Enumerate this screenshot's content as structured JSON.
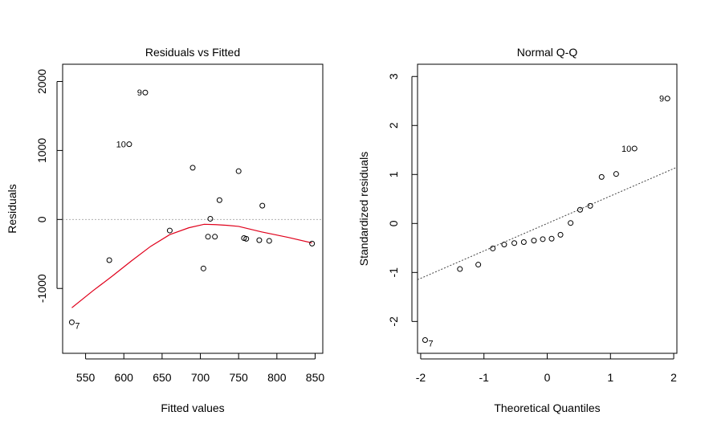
{
  "chart_data": [
    {
      "type": "scatter",
      "title": "Residuals vs Fitted",
      "xlabel": "Fitted values",
      "ylabel": "Residuals",
      "xlim": [
        520,
        860
      ],
      "ylim": [
        -1940,
        2250
      ],
      "xticks": [
        550,
        600,
        650,
        700,
        750,
        800,
        850
      ],
      "yticks": [
        -1000,
        0,
        1000,
        2000
      ],
      "xtick_labels": [
        "550",
        "600",
        "650",
        "700",
        "750",
        "800",
        "850"
      ],
      "ytick_labels": [
        "-1000",
        "0",
        "1000",
        "2000"
      ],
      "reference_line": 0,
      "points": [
        {
          "x": 532,
          "y": -1490,
          "label": "7"
        },
        {
          "x": 581,
          "y": -590,
          "label": ""
        },
        {
          "x": 607,
          "y": 1090,
          "label": "10"
        },
        {
          "x": 628,
          "y": 1840,
          "label": "9"
        },
        {
          "x": 660,
          "y": -160,
          "label": ""
        },
        {
          "x": 690,
          "y": 750,
          "label": ""
        },
        {
          "x": 704,
          "y": -710,
          "label": ""
        },
        {
          "x": 710,
          "y": -250,
          "label": ""
        },
        {
          "x": 713,
          "y": 10,
          "label": ""
        },
        {
          "x": 719,
          "y": -250,
          "label": ""
        },
        {
          "x": 725,
          "y": 280,
          "label": ""
        },
        {
          "x": 750,
          "y": 700,
          "label": ""
        },
        {
          "x": 757,
          "y": -270,
          "label": ""
        },
        {
          "x": 760,
          "y": -280,
          "label": ""
        },
        {
          "x": 777,
          "y": -300,
          "label": ""
        },
        {
          "x": 781,
          "y": 200,
          "label": ""
        },
        {
          "x": 790,
          "y": -310,
          "label": ""
        },
        {
          "x": 846,
          "y": -350,
          "label": ""
        }
      ],
      "smooth_line": {
        "color": "#e0001b",
        "x": [
          532,
          560,
          585,
          610,
          635,
          660,
          685,
          705,
          720,
          735,
          750,
          780,
          815,
          846
        ],
        "y": [
          -1280,
          -1030,
          -820,
          -600,
          -390,
          -220,
          -120,
          -70,
          -75,
          -85,
          -100,
          -180,
          -260,
          -340
        ]
      }
    },
    {
      "type": "scatter",
      "title": "Normal Q-Q",
      "xlabel": "Theoretical Quantiles",
      "ylabel": "Standardized residuals",
      "xlim": [
        -2.05,
        2.05
      ],
      "ylim": [
        -2.65,
        3.25
      ],
      "xticks": [
        -2,
        -1,
        0,
        1,
        2
      ],
      "yticks": [
        -2,
        -1,
        0,
        1,
        2,
        3
      ],
      "xtick_labels": [
        "-2",
        "-1",
        "0",
        "1",
        "2"
      ],
      "ytick_labels": [
        "-2",
        "-1",
        "0",
        "1",
        "2",
        "3"
      ],
      "qq_line": {
        "intercept": 0.0,
        "slope": 0.56,
        "dashed": true
      },
      "points": [
        {
          "x": -1.93,
          "y": -2.38,
          "label": "7"
        },
        {
          "x": -1.38,
          "y": -0.93,
          "label": ""
        },
        {
          "x": -1.09,
          "y": -0.84,
          "label": ""
        },
        {
          "x": -0.86,
          "y": -0.51,
          "label": ""
        },
        {
          "x": -0.68,
          "y": -0.43,
          "label": ""
        },
        {
          "x": -0.52,
          "y": -0.4,
          "label": ""
        },
        {
          "x": -0.37,
          "y": -0.38,
          "label": ""
        },
        {
          "x": -0.21,
          "y": -0.35,
          "label": ""
        },
        {
          "x": -0.07,
          "y": -0.32,
          "label": ""
        },
        {
          "x": 0.07,
          "y": -0.31,
          "label": ""
        },
        {
          "x": 0.21,
          "y": -0.23,
          "label": ""
        },
        {
          "x": 0.37,
          "y": 0.01,
          "label": ""
        },
        {
          "x": 0.52,
          "y": 0.28,
          "label": ""
        },
        {
          "x": 0.68,
          "y": 0.36,
          "label": ""
        },
        {
          "x": 0.86,
          "y": 0.95,
          "label": ""
        },
        {
          "x": 1.09,
          "y": 1.01,
          "label": ""
        },
        {
          "x": 1.38,
          "y": 1.53,
          "label": "10"
        },
        {
          "x": 1.9,
          "y": 2.55,
          "label": "9"
        }
      ]
    }
  ]
}
